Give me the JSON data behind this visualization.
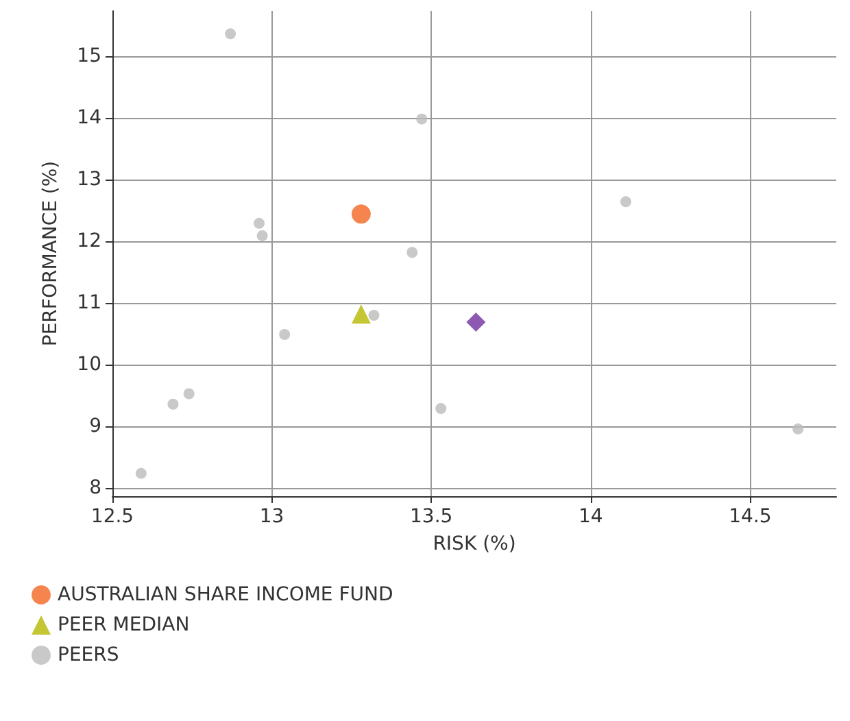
{
  "chart_data": {
    "type": "scatter",
    "xlabel": "RISK (%)",
    "ylabel": "PERFORMANCE (%)",
    "xlim": [
      12.5,
      14.77
    ],
    "xticks": [
      12.5,
      13,
      13.5,
      14,
      14.5
    ],
    "ylim": [
      7.87,
      15.73
    ],
    "yticks": [
      8,
      9,
      10,
      11,
      12,
      13,
      14,
      15
    ],
    "grid": true,
    "legend": "bottom",
    "series": [
      {
        "name": "AUSTRALIAN SHARE INCOME FUND",
        "color": "#f26522",
        "marker": "circle",
        "x": [
          13.28
        ],
        "values": [
          12.44
        ]
      },
      {
        "color": "#7030a0",
        "marker": "diamond",
        "x": [
          13.64
        ],
        "values": [
          10.69
        ]
      },
      {
        "name": "PEER MEDIAN",
        "color": "#b5b800",
        "marker": "triangle",
        "x": [
          13.28
        ],
        "values": [
          10.82
        ]
      },
      {
        "name": "PEERS",
        "color": "#bbbbbb",
        "marker": "circle",
        "x": [
          12.87,
          13.47,
          12.96,
          12.97,
          13.44,
          14.11,
          13.04,
          13.32,
          12.69,
          12.74,
          13.53,
          12.59,
          14.65
        ],
        "values": [
          15.36,
          13.98,
          12.29,
          12.09,
          11.82,
          12.64,
          10.49,
          10.8,
          9.36,
          9.53,
          9.29,
          8.24,
          8.96
        ]
      }
    ]
  }
}
